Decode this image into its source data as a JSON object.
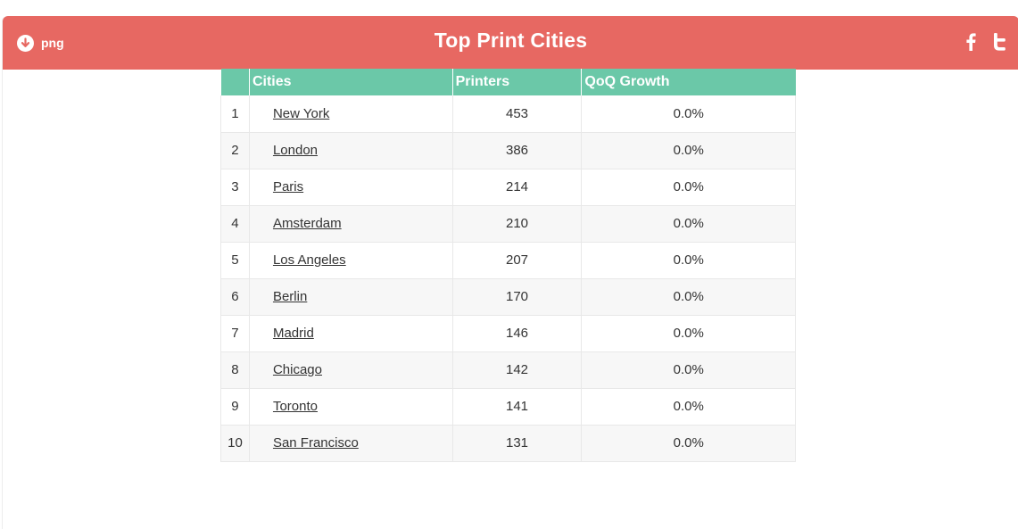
{
  "header": {
    "title": "Top Print Cities",
    "download_label": "png",
    "download_icon": "download-circle-icon",
    "social_icons": [
      "facebook-icon",
      "twitter-icon"
    ],
    "bg_color": "#e76862"
  },
  "table": {
    "header_color": "#6bc8a8",
    "columns": [
      "",
      "Cities",
      "Printers",
      "QoQ Growth"
    ],
    "rows": [
      {
        "rank": "1",
        "city": "New York",
        "printers": "453",
        "growth": "0.0%"
      },
      {
        "rank": "2",
        "city": "London",
        "printers": "386",
        "growth": "0.0%"
      },
      {
        "rank": "3",
        "city": "Paris",
        "printers": "214",
        "growth": "0.0%"
      },
      {
        "rank": "4",
        "city": "Amsterdam",
        "printers": "210",
        "growth": "0.0%"
      },
      {
        "rank": "5",
        "city": "Los Angeles",
        "printers": "207",
        "growth": "0.0%"
      },
      {
        "rank": "6",
        "city": "Berlin",
        "printers": "170",
        "growth": "0.0%"
      },
      {
        "rank": "7",
        "city": "Madrid",
        "printers": "146",
        "growth": "0.0%"
      },
      {
        "rank": "8",
        "city": "Chicago",
        "printers": "142",
        "growth": "0.0%"
      },
      {
        "rank": "9",
        "city": "Toronto",
        "printers": "141",
        "growth": "0.0%"
      },
      {
        "rank": "10",
        "city": "San Francisco",
        "printers": "131",
        "growth": "0.0%"
      }
    ]
  }
}
